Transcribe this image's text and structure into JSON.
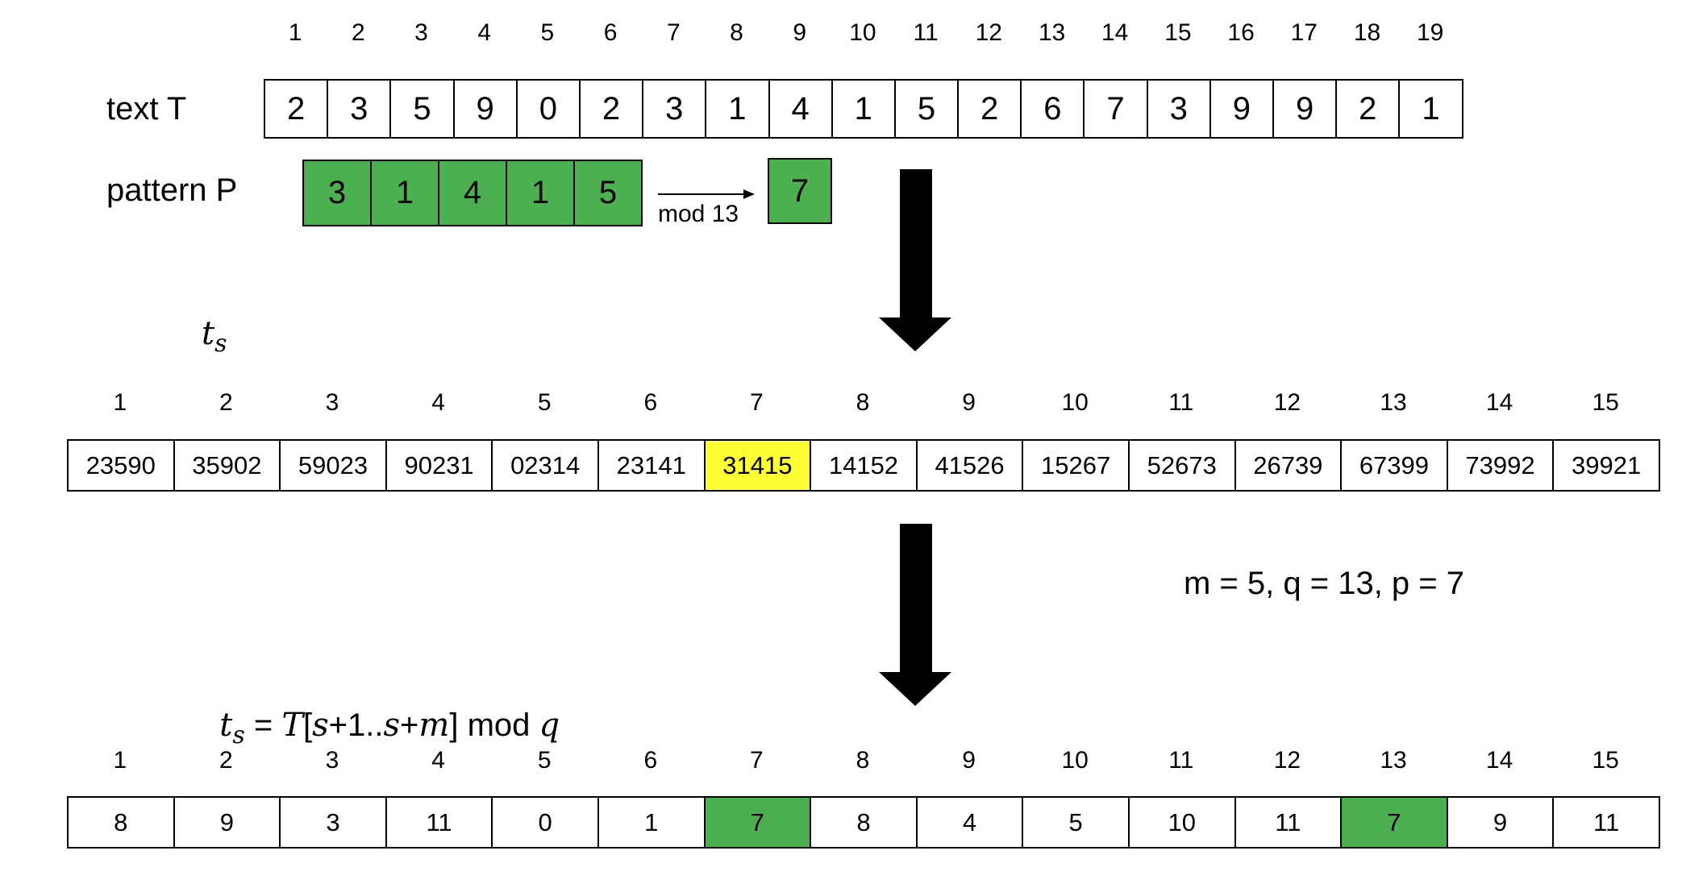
{
  "colors": {
    "green": "#4CAF50",
    "yellow": "#FFFF33",
    "border": "#000000"
  },
  "text_row": {
    "label": "text T",
    "indices": [
      "1",
      "2",
      "3",
      "4",
      "5",
      "6",
      "7",
      "8",
      "9",
      "10",
      "11",
      "12",
      "13",
      "14",
      "15",
      "16",
      "17",
      "18",
      "19"
    ],
    "values": [
      "2",
      "3",
      "5",
      "9",
      "0",
      "2",
      "3",
      "1",
      "4",
      "1",
      "5",
      "2",
      "6",
      "7",
      "3",
      "9",
      "9",
      "2",
      "1"
    ]
  },
  "pattern_row": {
    "label": "pattern P",
    "values": [
      "3",
      "1",
      "4",
      "1",
      "5"
    ],
    "arrow_label": "mod 13",
    "result": "7"
  },
  "ts_row": {
    "label_main": "t",
    "label_sub": "s",
    "indices": [
      "1",
      "2",
      "3",
      "4",
      "5",
      "6",
      "7",
      "8",
      "9",
      "10",
      "11",
      "12",
      "13",
      "14",
      "15"
    ],
    "values": [
      "23590",
      "35902",
      "59023",
      "90231",
      "02314",
      "23141",
      "31415",
      "14152",
      "41526",
      "15267",
      "52673",
      "26739",
      "67399",
      "73992",
      "39921"
    ],
    "highlight_index": 6
  },
  "params": "m = 5, q = 13, p = 7",
  "formula": {
    "lhs_main": "t",
    "lhs_sub": "s",
    "eq": " = ",
    "T": "T",
    "bracket_open": "[",
    "s1": "s",
    "plus1": "+1..",
    "s2": "s",
    "plus": "+",
    "m": "m",
    "bracket_close": "]",
    "mod": " mod ",
    "q": "q"
  },
  "mod_row": {
    "indices": [
      "1",
      "2",
      "3",
      "4",
      "5",
      "6",
      "7",
      "8",
      "9",
      "10",
      "11",
      "12",
      "13",
      "14",
      "15"
    ],
    "values": [
      "8",
      "9",
      "3",
      "11",
      "0",
      "1",
      "7",
      "8",
      "4",
      "5",
      "10",
      "11",
      "7",
      "9",
      "11"
    ],
    "highlight_indices": [
      6,
      12
    ]
  }
}
